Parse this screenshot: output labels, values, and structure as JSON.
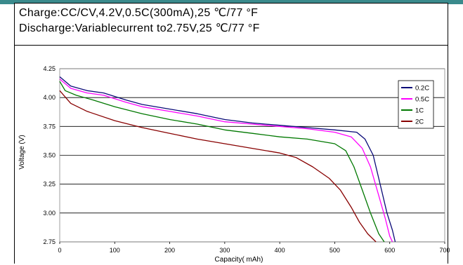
{
  "header": {
    "line1": "Charge:CC/CV,4.2V,0.5C(300mA),25 ℃/77 °F",
    "line2": "Discharge:Variablecurrent to2.75V,25 ℃/77 °F"
  },
  "chart_data": {
    "type": "line",
    "title": "",
    "xlabel": "Capacity( mAh)",
    "ylabel": "Voltage (V)",
    "xlim": [
      0,
      700
    ],
    "ylim": [
      2.75,
      4.25
    ],
    "xticks": [
      "0",
      "100",
      "200",
      "300",
      "400",
      "500",
      "600",
      "700"
    ],
    "yticks": [
      "2.75",
      "3.00",
      "3.25",
      "3.50",
      "3.75",
      "4.00",
      "4.25"
    ],
    "grid": "horizontal",
    "legend_position": "top-right",
    "series": [
      {
        "name": "0.2C",
        "color": "#0a0a78",
        "points": [
          [
            0,
            4.18
          ],
          [
            20,
            4.1
          ],
          [
            50,
            4.06
          ],
          [
            80,
            4.04
          ],
          [
            120,
            3.98
          ],
          [
            150,
            3.94
          ],
          [
            200,
            3.9
          ],
          [
            250,
            3.86
          ],
          [
            300,
            3.81
          ],
          [
            350,
            3.78
          ],
          [
            400,
            3.76
          ],
          [
            450,
            3.74
          ],
          [
            500,
            3.72
          ],
          [
            540,
            3.7
          ],
          [
            555,
            3.64
          ],
          [
            570,
            3.5
          ],
          [
            585,
            3.2
          ],
          [
            595,
            3.0
          ],
          [
            605,
            2.85
          ],
          [
            610,
            2.75
          ]
        ]
      },
      {
        "name": "0.5C",
        "color": "#ff00ff",
        "points": [
          [
            0,
            4.16
          ],
          [
            20,
            4.08
          ],
          [
            50,
            4.04
          ],
          [
            80,
            4.02
          ],
          [
            120,
            3.96
          ],
          [
            150,
            3.92
          ],
          [
            200,
            3.88
          ],
          [
            250,
            3.84
          ],
          [
            300,
            3.79
          ],
          [
            350,
            3.77
          ],
          [
            400,
            3.75
          ],
          [
            450,
            3.73
          ],
          [
            500,
            3.7
          ],
          [
            530,
            3.66
          ],
          [
            550,
            3.56
          ],
          [
            565,
            3.4
          ],
          [
            580,
            3.15
          ],
          [
            592,
            2.95
          ],
          [
            600,
            2.8
          ],
          [
            605,
            2.75
          ]
        ]
      },
      {
        "name": "1C",
        "color": "#007800",
        "points": [
          [
            0,
            4.14
          ],
          [
            10,
            4.06
          ],
          [
            30,
            4.02
          ],
          [
            60,
            3.98
          ],
          [
            100,
            3.92
          ],
          [
            150,
            3.86
          ],
          [
            200,
            3.81
          ],
          [
            250,
            3.77
          ],
          [
            300,
            3.72
          ],
          [
            350,
            3.69
          ],
          [
            400,
            3.66
          ],
          [
            450,
            3.64
          ],
          [
            500,
            3.6
          ],
          [
            520,
            3.54
          ],
          [
            535,
            3.4
          ],
          [
            550,
            3.2
          ],
          [
            565,
            3.0
          ],
          [
            580,
            2.82
          ],
          [
            590,
            2.75
          ]
        ]
      },
      {
        "name": "2C",
        "color": "#880000",
        "points": [
          [
            0,
            4.06
          ],
          [
            20,
            3.95
          ],
          [
            50,
            3.88
          ],
          [
            100,
            3.8
          ],
          [
            150,
            3.74
          ],
          [
            200,
            3.69
          ],
          [
            250,
            3.64
          ],
          [
            300,
            3.6
          ],
          [
            350,
            3.56
          ],
          [
            400,
            3.52
          ],
          [
            430,
            3.48
          ],
          [
            460,
            3.4
          ],
          [
            490,
            3.3
          ],
          [
            510,
            3.2
          ],
          [
            530,
            3.05
          ],
          [
            545,
            2.92
          ],
          [
            560,
            2.82
          ],
          [
            575,
            2.75
          ]
        ]
      }
    ]
  }
}
